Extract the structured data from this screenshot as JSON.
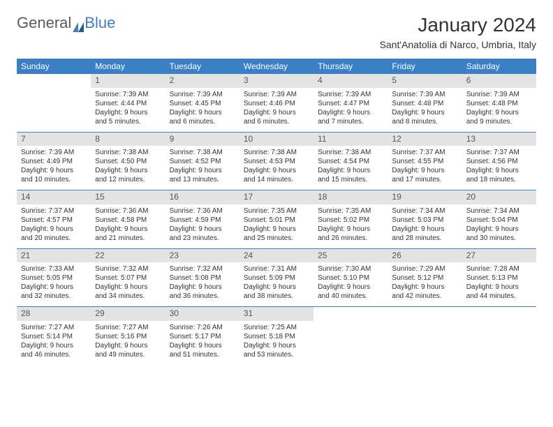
{
  "logo": {
    "text_general": "General",
    "text_blue": "Blue"
  },
  "title": "January 2024",
  "location": "Sant'Anatolia di Narco, Umbria, Italy",
  "day_headers": [
    "Sunday",
    "Monday",
    "Tuesday",
    "Wednesday",
    "Thursday",
    "Friday",
    "Saturday"
  ],
  "colors": {
    "header_bg": "#3b7fc4",
    "header_fg": "#ffffff",
    "daynum_bg": "#e4e4e4",
    "rule": "#3b7fc4"
  },
  "weeks": [
    [
      {
        "day": "",
        "lines": []
      },
      {
        "day": "1",
        "lines": [
          "Sunrise: 7:39 AM",
          "Sunset: 4:44 PM",
          "Daylight: 9 hours and 5 minutes."
        ]
      },
      {
        "day": "2",
        "lines": [
          "Sunrise: 7:39 AM",
          "Sunset: 4:45 PM",
          "Daylight: 9 hours and 6 minutes."
        ]
      },
      {
        "day": "3",
        "lines": [
          "Sunrise: 7:39 AM",
          "Sunset: 4:46 PM",
          "Daylight: 9 hours and 6 minutes."
        ]
      },
      {
        "day": "4",
        "lines": [
          "Sunrise: 7:39 AM",
          "Sunset: 4:47 PM",
          "Daylight: 9 hours and 7 minutes."
        ]
      },
      {
        "day": "5",
        "lines": [
          "Sunrise: 7:39 AM",
          "Sunset: 4:48 PM",
          "Daylight: 9 hours and 8 minutes."
        ]
      },
      {
        "day": "6",
        "lines": [
          "Sunrise: 7:39 AM",
          "Sunset: 4:48 PM",
          "Daylight: 9 hours and 9 minutes."
        ]
      }
    ],
    [
      {
        "day": "7",
        "lines": [
          "Sunrise: 7:39 AM",
          "Sunset: 4:49 PM",
          "Daylight: 9 hours and 10 minutes."
        ]
      },
      {
        "day": "8",
        "lines": [
          "Sunrise: 7:38 AM",
          "Sunset: 4:50 PM",
          "Daylight: 9 hours and 12 minutes."
        ]
      },
      {
        "day": "9",
        "lines": [
          "Sunrise: 7:38 AM",
          "Sunset: 4:52 PM",
          "Daylight: 9 hours and 13 minutes."
        ]
      },
      {
        "day": "10",
        "lines": [
          "Sunrise: 7:38 AM",
          "Sunset: 4:53 PM",
          "Daylight: 9 hours and 14 minutes."
        ]
      },
      {
        "day": "11",
        "lines": [
          "Sunrise: 7:38 AM",
          "Sunset: 4:54 PM",
          "Daylight: 9 hours and 15 minutes."
        ]
      },
      {
        "day": "12",
        "lines": [
          "Sunrise: 7:37 AM",
          "Sunset: 4:55 PM",
          "Daylight: 9 hours and 17 minutes."
        ]
      },
      {
        "day": "13",
        "lines": [
          "Sunrise: 7:37 AM",
          "Sunset: 4:56 PM",
          "Daylight: 9 hours and 18 minutes."
        ]
      }
    ],
    [
      {
        "day": "14",
        "lines": [
          "Sunrise: 7:37 AM",
          "Sunset: 4:57 PM",
          "Daylight: 9 hours and 20 minutes."
        ]
      },
      {
        "day": "15",
        "lines": [
          "Sunrise: 7:36 AM",
          "Sunset: 4:58 PM",
          "Daylight: 9 hours and 21 minutes."
        ]
      },
      {
        "day": "16",
        "lines": [
          "Sunrise: 7:36 AM",
          "Sunset: 4:59 PM",
          "Daylight: 9 hours and 23 minutes."
        ]
      },
      {
        "day": "17",
        "lines": [
          "Sunrise: 7:35 AM",
          "Sunset: 5:01 PM",
          "Daylight: 9 hours and 25 minutes."
        ]
      },
      {
        "day": "18",
        "lines": [
          "Sunrise: 7:35 AM",
          "Sunset: 5:02 PM",
          "Daylight: 9 hours and 26 minutes."
        ]
      },
      {
        "day": "19",
        "lines": [
          "Sunrise: 7:34 AM",
          "Sunset: 5:03 PM",
          "Daylight: 9 hours and 28 minutes."
        ]
      },
      {
        "day": "20",
        "lines": [
          "Sunrise: 7:34 AM",
          "Sunset: 5:04 PM",
          "Daylight: 9 hours and 30 minutes."
        ]
      }
    ],
    [
      {
        "day": "21",
        "lines": [
          "Sunrise: 7:33 AM",
          "Sunset: 5:05 PM",
          "Daylight: 9 hours and 32 minutes."
        ]
      },
      {
        "day": "22",
        "lines": [
          "Sunrise: 7:32 AM",
          "Sunset: 5:07 PM",
          "Daylight: 9 hours and 34 minutes."
        ]
      },
      {
        "day": "23",
        "lines": [
          "Sunrise: 7:32 AM",
          "Sunset: 5:08 PM",
          "Daylight: 9 hours and 36 minutes."
        ]
      },
      {
        "day": "24",
        "lines": [
          "Sunrise: 7:31 AM",
          "Sunset: 5:09 PM",
          "Daylight: 9 hours and 38 minutes."
        ]
      },
      {
        "day": "25",
        "lines": [
          "Sunrise: 7:30 AM",
          "Sunset: 5:10 PM",
          "Daylight: 9 hours and 40 minutes."
        ]
      },
      {
        "day": "26",
        "lines": [
          "Sunrise: 7:29 AM",
          "Sunset: 5:12 PM",
          "Daylight: 9 hours and 42 minutes."
        ]
      },
      {
        "day": "27",
        "lines": [
          "Sunrise: 7:28 AM",
          "Sunset: 5:13 PM",
          "Daylight: 9 hours and 44 minutes."
        ]
      }
    ],
    [
      {
        "day": "28",
        "lines": [
          "Sunrise: 7:27 AM",
          "Sunset: 5:14 PM",
          "Daylight: 9 hours and 46 minutes."
        ]
      },
      {
        "day": "29",
        "lines": [
          "Sunrise: 7:27 AM",
          "Sunset: 5:16 PM",
          "Daylight: 9 hours and 49 minutes."
        ]
      },
      {
        "day": "30",
        "lines": [
          "Sunrise: 7:26 AM",
          "Sunset: 5:17 PM",
          "Daylight: 9 hours and 51 minutes."
        ]
      },
      {
        "day": "31",
        "lines": [
          "Sunrise: 7:25 AM",
          "Sunset: 5:18 PM",
          "Daylight: 9 hours and 53 minutes."
        ]
      },
      {
        "day": "",
        "lines": []
      },
      {
        "day": "",
        "lines": []
      },
      {
        "day": "",
        "lines": []
      }
    ]
  ]
}
